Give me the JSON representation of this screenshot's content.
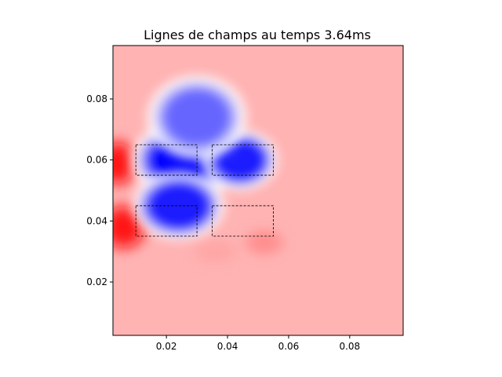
{
  "chart_data": {
    "type": "heatmap",
    "title": "Lignes de champs au temps 3.64ms",
    "xlabel": "",
    "ylabel": "",
    "xlim": [
      0.0025,
      0.0975
    ],
    "ylim": [
      0.0025,
      0.0975
    ],
    "xticks": [
      0.02,
      0.04,
      0.06,
      0.08
    ],
    "yticks": [
      0.02,
      0.04,
      0.06,
      0.08
    ],
    "xtick_labels": [
      "0.02",
      "0.04",
      "0.06",
      "0.08"
    ],
    "ytick_labels": [
      "0.02",
      "0.04",
      "0.06",
      "0.08"
    ],
    "colormap": "bwr",
    "colormap_colors": {
      "negative": "#0000ff",
      "zero": "#ffffff",
      "positive": "#ff0000"
    },
    "background_field_color": "#ffb3b3",
    "field_sources": [
      {
        "x": 0.026,
        "y": 0.06,
        "rx": 0.014,
        "ry": 0.01,
        "value": -1.0
      },
      {
        "x": 0.044,
        "y": 0.06,
        "rx": 0.01,
        "ry": 0.008,
        "value": -0.9
      },
      {
        "x": 0.024,
        "y": 0.045,
        "rx": 0.012,
        "ry": 0.009,
        "value": -0.9
      },
      {
        "x": 0.03,
        "y": 0.074,
        "rx": 0.013,
        "ry": 0.011,
        "value": -0.6
      },
      {
        "x": 0.004,
        "y": 0.059,
        "rx": 0.006,
        "ry": 0.007,
        "value": 0.95
      },
      {
        "x": 0.006,
        "y": 0.038,
        "rx": 0.007,
        "ry": 0.007,
        "value": 0.95
      },
      {
        "x": 0.052,
        "y": 0.033,
        "rx": 0.006,
        "ry": 0.004,
        "value": 0.45
      },
      {
        "x": 0.036,
        "y": 0.03,
        "rx": 0.007,
        "ry": 0.004,
        "value": 0.35
      }
    ],
    "coil_rectangles": [
      {
        "x0": 0.01,
        "y0": 0.055,
        "x1": 0.03,
        "y1": 0.065
      },
      {
        "x0": 0.035,
        "y0": 0.055,
        "x1": 0.055,
        "y1": 0.065
      },
      {
        "x0": 0.01,
        "y0": 0.035,
        "x1": 0.03,
        "y1": 0.045
      },
      {
        "x0": 0.035,
        "y0": 0.035,
        "x1": 0.055,
        "y1": 0.045
      }
    ],
    "grid": false,
    "aspect": "equal"
  }
}
